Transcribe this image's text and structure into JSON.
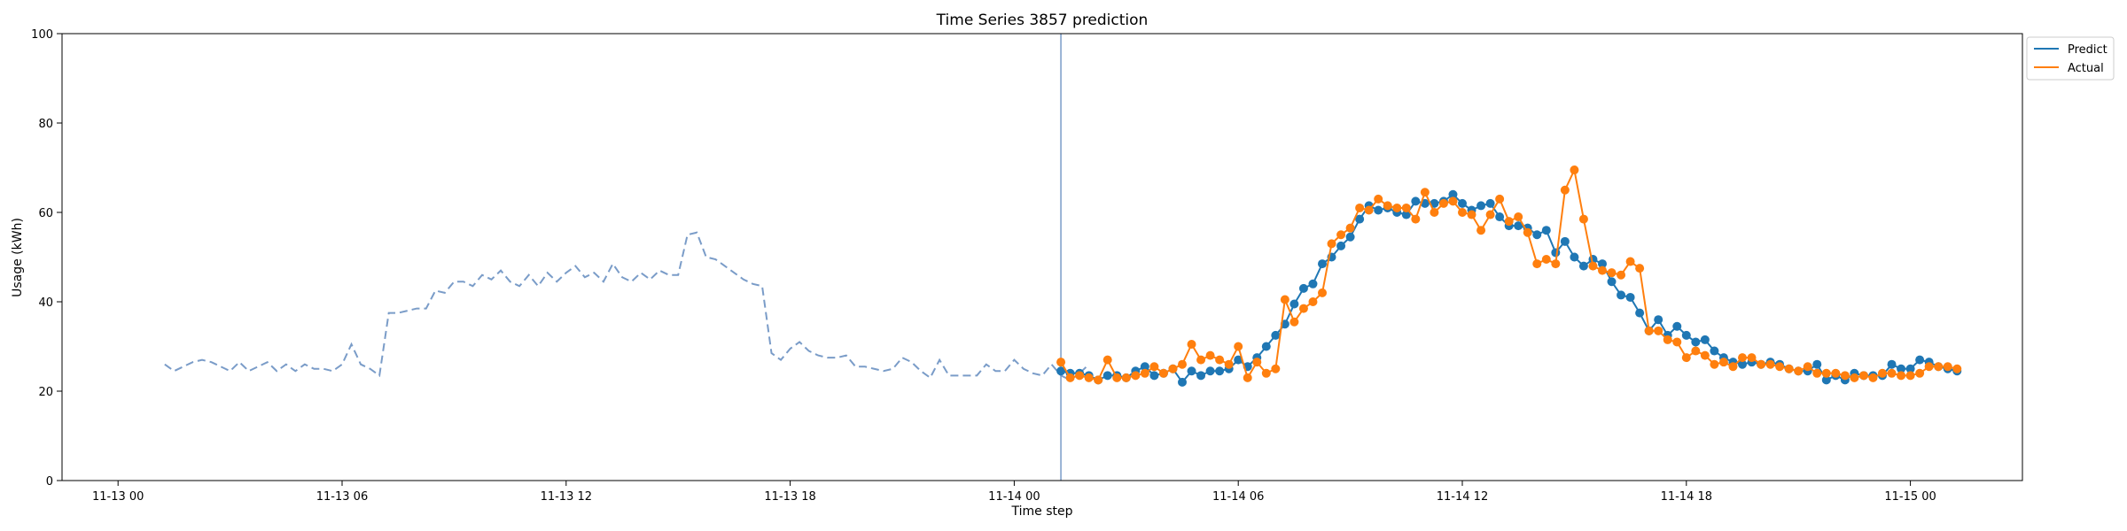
{
  "chart_data": {
    "type": "line",
    "title": "Time Series 3857 prediction",
    "xlabel": "Time step",
    "ylabel": "Usage (kWh)",
    "ylim": [
      0,
      100
    ],
    "yticks": [
      0,
      20,
      40,
      60,
      80,
      100
    ],
    "xlim": [
      "2024-11-12T22:30",
      "2024-11-15T03:00"
    ],
    "xticks": [
      {
        "t": "2024-11-13T00:00",
        "label": "11-13 00"
      },
      {
        "t": "2024-11-13T06:00",
        "label": "11-13 06"
      },
      {
        "t": "2024-11-13T12:00",
        "label": "11-13 12"
      },
      {
        "t": "2024-11-13T18:00",
        "label": "11-13 18"
      },
      {
        "t": "2024-11-14T00:00",
        "label": "11-14 00"
      },
      {
        "t": "2024-11-14T06:00",
        "label": "11-14 06"
      },
      {
        "t": "2024-11-14T12:00",
        "label": "11-14 12"
      },
      {
        "t": "2024-11-14T18:00",
        "label": "11-14 18"
      },
      {
        "t": "2024-11-15T00:00",
        "label": "11-15 00"
      }
    ],
    "grid": false,
    "legend_position": "outside-top-right",
    "forecast_start": "2024-11-14T01:15",
    "history": {
      "start": "2024-11-13T01:15",
      "interval_minutes": 15,
      "color": "#7a9cc8",
      "values": [
        26,
        24.5,
        25.5,
        26.5,
        27,
        26.5,
        25.5,
        24.5,
        26.5,
        24.5,
        25.5,
        26.5,
        24.5,
        26,
        24.5,
        26,
        25,
        25,
        24.5,
        26,
        30.5,
        26,
        25,
        23.5,
        37.5,
        37.5,
        38,
        38.5,
        38.5,
        42.5,
        42,
        44.5,
        44.5,
        43.5,
        46,
        45,
        47,
        44.5,
        43.5,
        46,
        43.5,
        46.5,
        44.5,
        46.5,
        48,
        45.5,
        46.5,
        44.5,
        48.5,
        45.5,
        44.5,
        46.5,
        45,
        47,
        46,
        46,
        55,
        55.5,
        50,
        49.5,
        48,
        46.5,
        45,
        44,
        43.5,
        28.5,
        27,
        29.5,
        31,
        29,
        28,
        27.5,
        27.5,
        28,
        25.5,
        25.5,
        25,
        24.5,
        25,
        27.5,
        26.5,
        24.5,
        23,
        27,
        23.5,
        23.5,
        23.5,
        23.5,
        26,
        24.5,
        24.5,
        27,
        25,
        24,
        23.5,
        26,
        23.5,
        22.5,
        24,
        26
      ]
    },
    "series": [
      {
        "name": "Predict",
        "color": "#1f77b4",
        "start": "2024-11-14T01:15",
        "interval_minutes": 15,
        "values": [
          24.5,
          24,
          24,
          23.5,
          22.5,
          23.5,
          23.5,
          23,
          24.5,
          25.5,
          23.5,
          24,
          25,
          22,
          24.5,
          23.5,
          24.5,
          24.5,
          25,
          27,
          25.5,
          27.5,
          30,
          32.5,
          35,
          39.5,
          43,
          44,
          48.5,
          50,
          52.5,
          54.5,
          58.5,
          61.5,
          60.5,
          61,
          60,
          59.5,
          62.5,
          62,
          62,
          62.5,
          64,
          62,
          60.5,
          61.5,
          62,
          59,
          57,
          57,
          56.5,
          55,
          56,
          51,
          53.5,
          50,
          48,
          49.5,
          48.5,
          44.5,
          41.5,
          41,
          37.5,
          33.5,
          36,
          32.5,
          34.5,
          32.5,
          31,
          31.5,
          29,
          27.5,
          26.5,
          26,
          26.5,
          26,
          26.5,
          26,
          25,
          24.5,
          24.5,
          26,
          22.5,
          23.5,
          22.5,
          24,
          23.5,
          23.5,
          23.5,
          26,
          25,
          25,
          27,
          26.5,
          25.5,
          25,
          24.5
        ]
      },
      {
        "name": "Actual",
        "color": "#ff7f0e",
        "start": "2024-11-14T01:15",
        "interval_minutes": 15,
        "values": [
          26.5,
          23,
          23.5,
          23,
          22.5,
          27,
          23,
          23,
          23.5,
          24,
          25.5,
          24,
          25,
          26,
          30.5,
          27,
          28,
          27,
          26,
          30,
          23,
          26.5,
          24,
          25,
          40.5,
          35.5,
          38.5,
          40,
          42,
          53,
          55,
          56.5,
          61,
          60.5,
          63,
          61.5,
          61,
          61,
          58.5,
          64.5,
          60,
          62,
          62.5,
          60,
          59.5,
          56,
          59.5,
          63,
          58,
          59,
          55.5,
          48.5,
          49.5,
          48.5,
          65,
          69.5,
          58.5,
          48,
          47,
          46.5,
          46,
          49,
          47.5,
          33.5,
          33.5,
          31.5,
          31,
          27.5,
          29,
          28,
          26,
          26.5,
          25.5,
          27.5,
          27.5,
          26,
          26,
          25.5,
          25,
          24.5,
          25.5,
          24,
          24,
          24,
          23.5,
          23,
          23.5,
          23,
          24,
          24,
          23.5,
          23.5,
          24,
          25.5,
          25.5,
          25.5,
          25
        ]
      }
    ]
  }
}
